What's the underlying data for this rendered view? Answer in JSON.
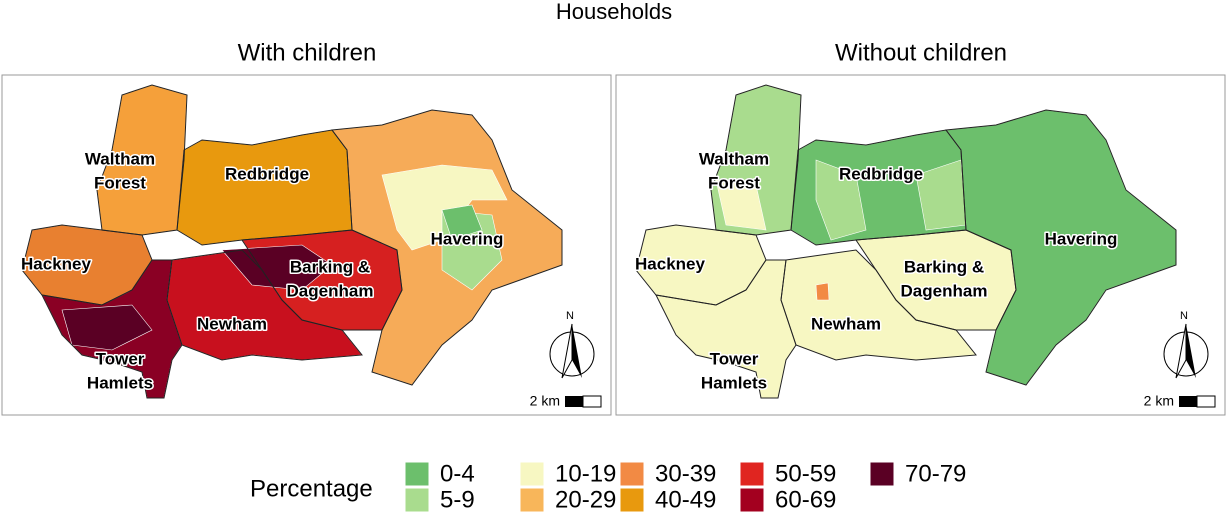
{
  "title": "Households",
  "panels": [
    {
      "title": "With children",
      "labels": [
        [
          "Waltham",
          "Forest"
        ],
        [
          "Redbridge"
        ],
        [
          "Havering"
        ],
        [
          "Hackney"
        ],
        [
          "Barking &",
          "Dagenham"
        ],
        [
          "Newham"
        ],
        [
          "Tower",
          "Hamlets"
        ]
      ],
      "north": "N",
      "scale": "2 km"
    },
    {
      "title": "Without children",
      "labels": [
        [
          "Waltham",
          "Forest"
        ],
        [
          "Redbridge"
        ],
        [
          "Havering"
        ],
        [
          "Hackney"
        ],
        [
          "Barking &",
          "Dagenham"
        ],
        [
          "Newham"
        ],
        [
          "Tower",
          "Hamlets"
        ]
      ],
      "north": "N",
      "scale": "2 km"
    }
  ],
  "legend": {
    "title": "Percentage",
    "items": [
      {
        "label": "0-4",
        "color": "#6cbf6c"
      },
      {
        "label": "5-9",
        "color": "#a9dc8e"
      },
      {
        "label": "10-19",
        "color": "#f7f7c2"
      },
      {
        "label": "20-29",
        "color": "#f8b65a"
      },
      {
        "label": "30-39",
        "color": "#f28a44"
      },
      {
        "label": "40-49",
        "color": "#e8990e"
      },
      {
        "label": "50-59",
        "color": "#e02520"
      },
      {
        "label": "60-69",
        "color": "#a3001f"
      },
      {
        "label": "70-79",
        "color": "#5a0024"
      }
    ]
  }
}
